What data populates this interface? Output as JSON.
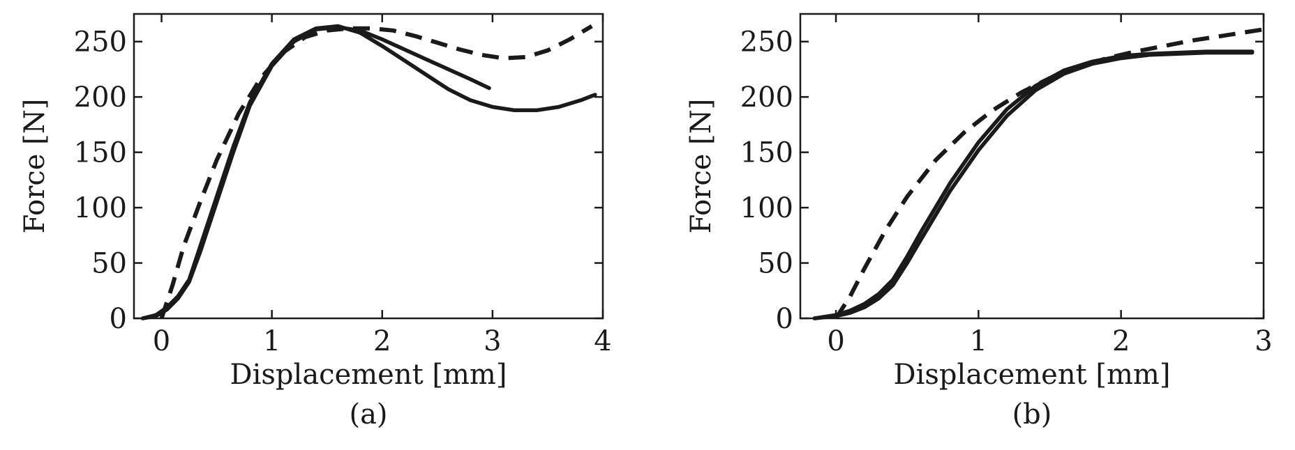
{
  "chart_data": [
    {
      "type": "line",
      "panel_label": "(a)",
      "xlabel": "Displacement [mm]",
      "ylabel": "Force [N]",
      "xlim": [
        -0.25,
        4.0
      ],
      "ylim": [
        0,
        275
      ],
      "xticks": [
        "0",
        "1",
        "2",
        "3",
        "4"
      ],
      "xtick_values": [
        0,
        1,
        2,
        3,
        4
      ],
      "yticks": [
        "0",
        "50",
        "100",
        "150",
        "200",
        "250"
      ],
      "ytick_values": [
        0,
        50,
        100,
        150,
        200,
        250
      ],
      "grid": false,
      "line_color": "#1a1a1a",
      "series": [
        {
          "style": "solid",
          "x": [
            -0.17,
            -0.05,
            0.05,
            0.15,
            0.25,
            0.35,
            0.5,
            0.65,
            0.8,
            1.0,
            1.2,
            1.4,
            1.6,
            1.8,
            2.0,
            2.2,
            2.4,
            2.6,
            2.8,
            3.0,
            3.2,
            3.4,
            3.6,
            3.8,
            3.93
          ],
          "y": [
            0,
            3,
            10,
            20,
            35,
            65,
            110,
            155,
            195,
            230,
            252,
            262,
            264,
            258,
            246,
            233,
            220,
            207,
            197,
            191,
            188,
            188,
            191,
            197,
            202
          ]
        },
        {
          "style": "solid",
          "x": [
            -0.17,
            -0.05,
            0.05,
            0.15,
            0.25,
            0.35,
            0.5,
            0.65,
            0.8,
            1.0,
            1.2,
            1.4,
            1.6,
            1.8,
            2.0,
            2.2,
            2.4,
            2.6,
            2.8,
            2.97
          ],
          "y": [
            0,
            2,
            8,
            18,
            33,
            60,
            105,
            150,
            192,
            228,
            250,
            261,
            263,
            260,
            252,
            243,
            234,
            225,
            216,
            208
          ]
        },
        {
          "style": "dashed",
          "x": [
            0.0,
            0.1,
            0.2,
            0.35,
            0.5,
            0.7,
            0.9,
            1.1,
            1.3,
            1.5,
            1.7,
            1.9,
            2.1,
            2.3,
            2.5,
            2.7,
            2.9,
            3.1,
            3.3,
            3.5,
            3.7,
            3.9
          ],
          "y": [
            0,
            30,
            65,
            105,
            143,
            185,
            217,
            240,
            254,
            260,
            262,
            262,
            260,
            255,
            249,
            243,
            238,
            235,
            236,
            242,
            252,
            264
          ]
        }
      ]
    },
    {
      "type": "line",
      "panel_label": "(b)",
      "xlabel": "Displacement [mm]",
      "ylabel": "Force [N]",
      "xlim": [
        -0.25,
        3.0
      ],
      "ylim": [
        0,
        275
      ],
      "xticks": [
        "0",
        "1",
        "2",
        "3"
      ],
      "xtick_values": [
        0,
        1,
        2,
        3
      ],
      "yticks": [
        "0",
        "50",
        "100",
        "150",
        "200",
        "250"
      ],
      "ytick_values": [
        0,
        50,
        100,
        150,
        200,
        250
      ],
      "grid": false,
      "line_color": "#1a1a1a",
      "series": [
        {
          "style": "solid",
          "x": [
            -0.15,
            0.0,
            0.1,
            0.2,
            0.3,
            0.4,
            0.5,
            0.6,
            0.8,
            1.0,
            1.2,
            1.4,
            1.6,
            1.8,
            2.0,
            2.2,
            2.4,
            2.6,
            2.8,
            2.92
          ],
          "y": [
            0,
            2,
            5,
            10,
            18,
            30,
            50,
            72,
            115,
            152,
            183,
            206,
            221,
            230,
            235,
            238,
            239,
            240,
            240,
            240
          ]
        },
        {
          "style": "solid",
          "x": [
            -0.15,
            0.0,
            0.1,
            0.2,
            0.3,
            0.4,
            0.5,
            0.6,
            0.8,
            1.0,
            1.2,
            1.4,
            1.6,
            1.8,
            2.0,
            2.2,
            2.4,
            2.6,
            2.8,
            2.92
          ],
          "y": [
            0,
            3,
            7,
            13,
            22,
            35,
            56,
            79,
            122,
            159,
            189,
            210,
            224,
            232,
            237,
            239,
            240,
            241,
            241,
            241
          ]
        },
        {
          "style": "dashed",
          "x": [
            0.0,
            0.1,
            0.2,
            0.35,
            0.5,
            0.7,
            0.9,
            1.1,
            1.3,
            1.5,
            1.7,
            1.9,
            2.1,
            2.3,
            2.5,
            2.7,
            2.9,
            3.0
          ],
          "y": [
            0,
            20,
            45,
            80,
            110,
            143,
            168,
            188,
            204,
            217,
            227,
            235,
            241,
            246,
            251,
            255,
            259,
            261
          ]
        }
      ]
    }
  ]
}
